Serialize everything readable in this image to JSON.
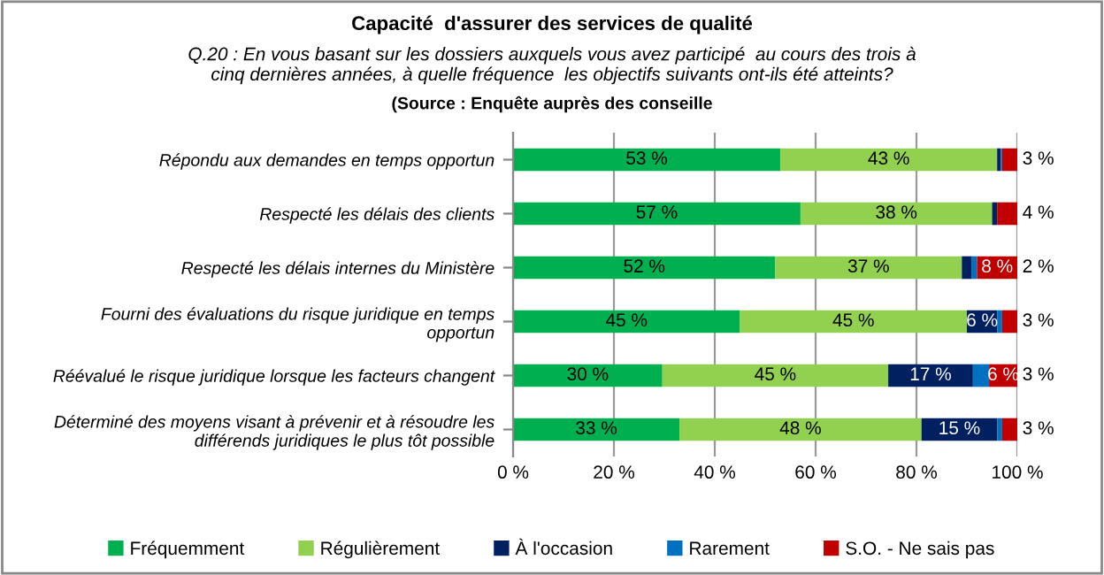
{
  "chart_data": {
    "type": "bar",
    "orientation": "horizontal",
    "stacked": true,
    "title": "Capacité  d'assurer des services de qualité",
    "subtitle": "Q.20 : En vous basant sur les dossiers auxquels vous avez participé  au cours des trois à cinq dernières années, à quelle fréquence  les objectifs suivants ont-ils été atteints?",
    "annotations": [
      "(Source : Enquête auprès des conseille"
    ],
    "categories": [
      "Répondu aux demandes en temps opportun",
      "Respecté les délais des clients",
      "Respecté les délais internes du Ministère",
      "Fourni des évaluations du risque juridique en temps opportun",
      "Réévalué le risque juridique lorsque les facteurs changent",
      "Déterminé des moyens visant à prévenir et à résoudre les différends juridiques le plus tôt possible"
    ],
    "series": [
      {
        "name": "Fréquemment",
        "color": "#00b050",
        "values": [
          53,
          57,
          52,
          45,
          29.6,
          33
        ],
        "value_labels": [
          "53 %",
          "57 %",
          "52 %",
          "45 %",
          "30 %",
          "33 %"
        ]
      },
      {
        "name": "Régulièrement",
        "color": "#92d050",
        "values": [
          43,
          38,
          37,
          45,
          44.8,
          48
        ],
        "value_labels": [
          "43 %",
          "38 %",
          "37 %",
          "45 %",
          "45 %",
          "48 %"
        ]
      },
      {
        "name": "À l'occasion",
        "color": "#002060",
        "values": [
          0.7,
          1,
          2,
          6,
          16.8,
          15
        ],
        "value_labels": [
          null,
          null,
          "2 %",
          "6 %",
          "17 %",
          "15 %"
        ]
      },
      {
        "name": "Rarement",
        "color": "#0070c0",
        "values": [
          0.3,
          0,
          1,
          1,
          3.2,
          1
        ],
        "value_labels": [
          null,
          null,
          null,
          null,
          "3 %",
          null
        ]
      },
      {
        "name": "S.O. - Ne sais pas",
        "color": "#c00000",
        "values": [
          3,
          4,
          8,
          3,
          5.6,
          3
        ],
        "value_labels": [
          "3 %",
          "4 %",
          "8 %",
          "3 %",
          "6 %",
          "3 %"
        ]
      }
    ],
    "xlim": [
      0,
      100
    ],
    "xticks": [
      {
        "value": 0,
        "label": "0 %"
      },
      {
        "value": 20,
        "label": "20 %"
      },
      {
        "value": 40,
        "label": "40 %"
      },
      {
        "value": 60,
        "label": "60 %"
      },
      {
        "value": 80,
        "label": "80 %"
      },
      {
        "value": 100,
        "label": "100 %"
      }
    ],
    "grid": "x",
    "legend": "bottom"
  }
}
